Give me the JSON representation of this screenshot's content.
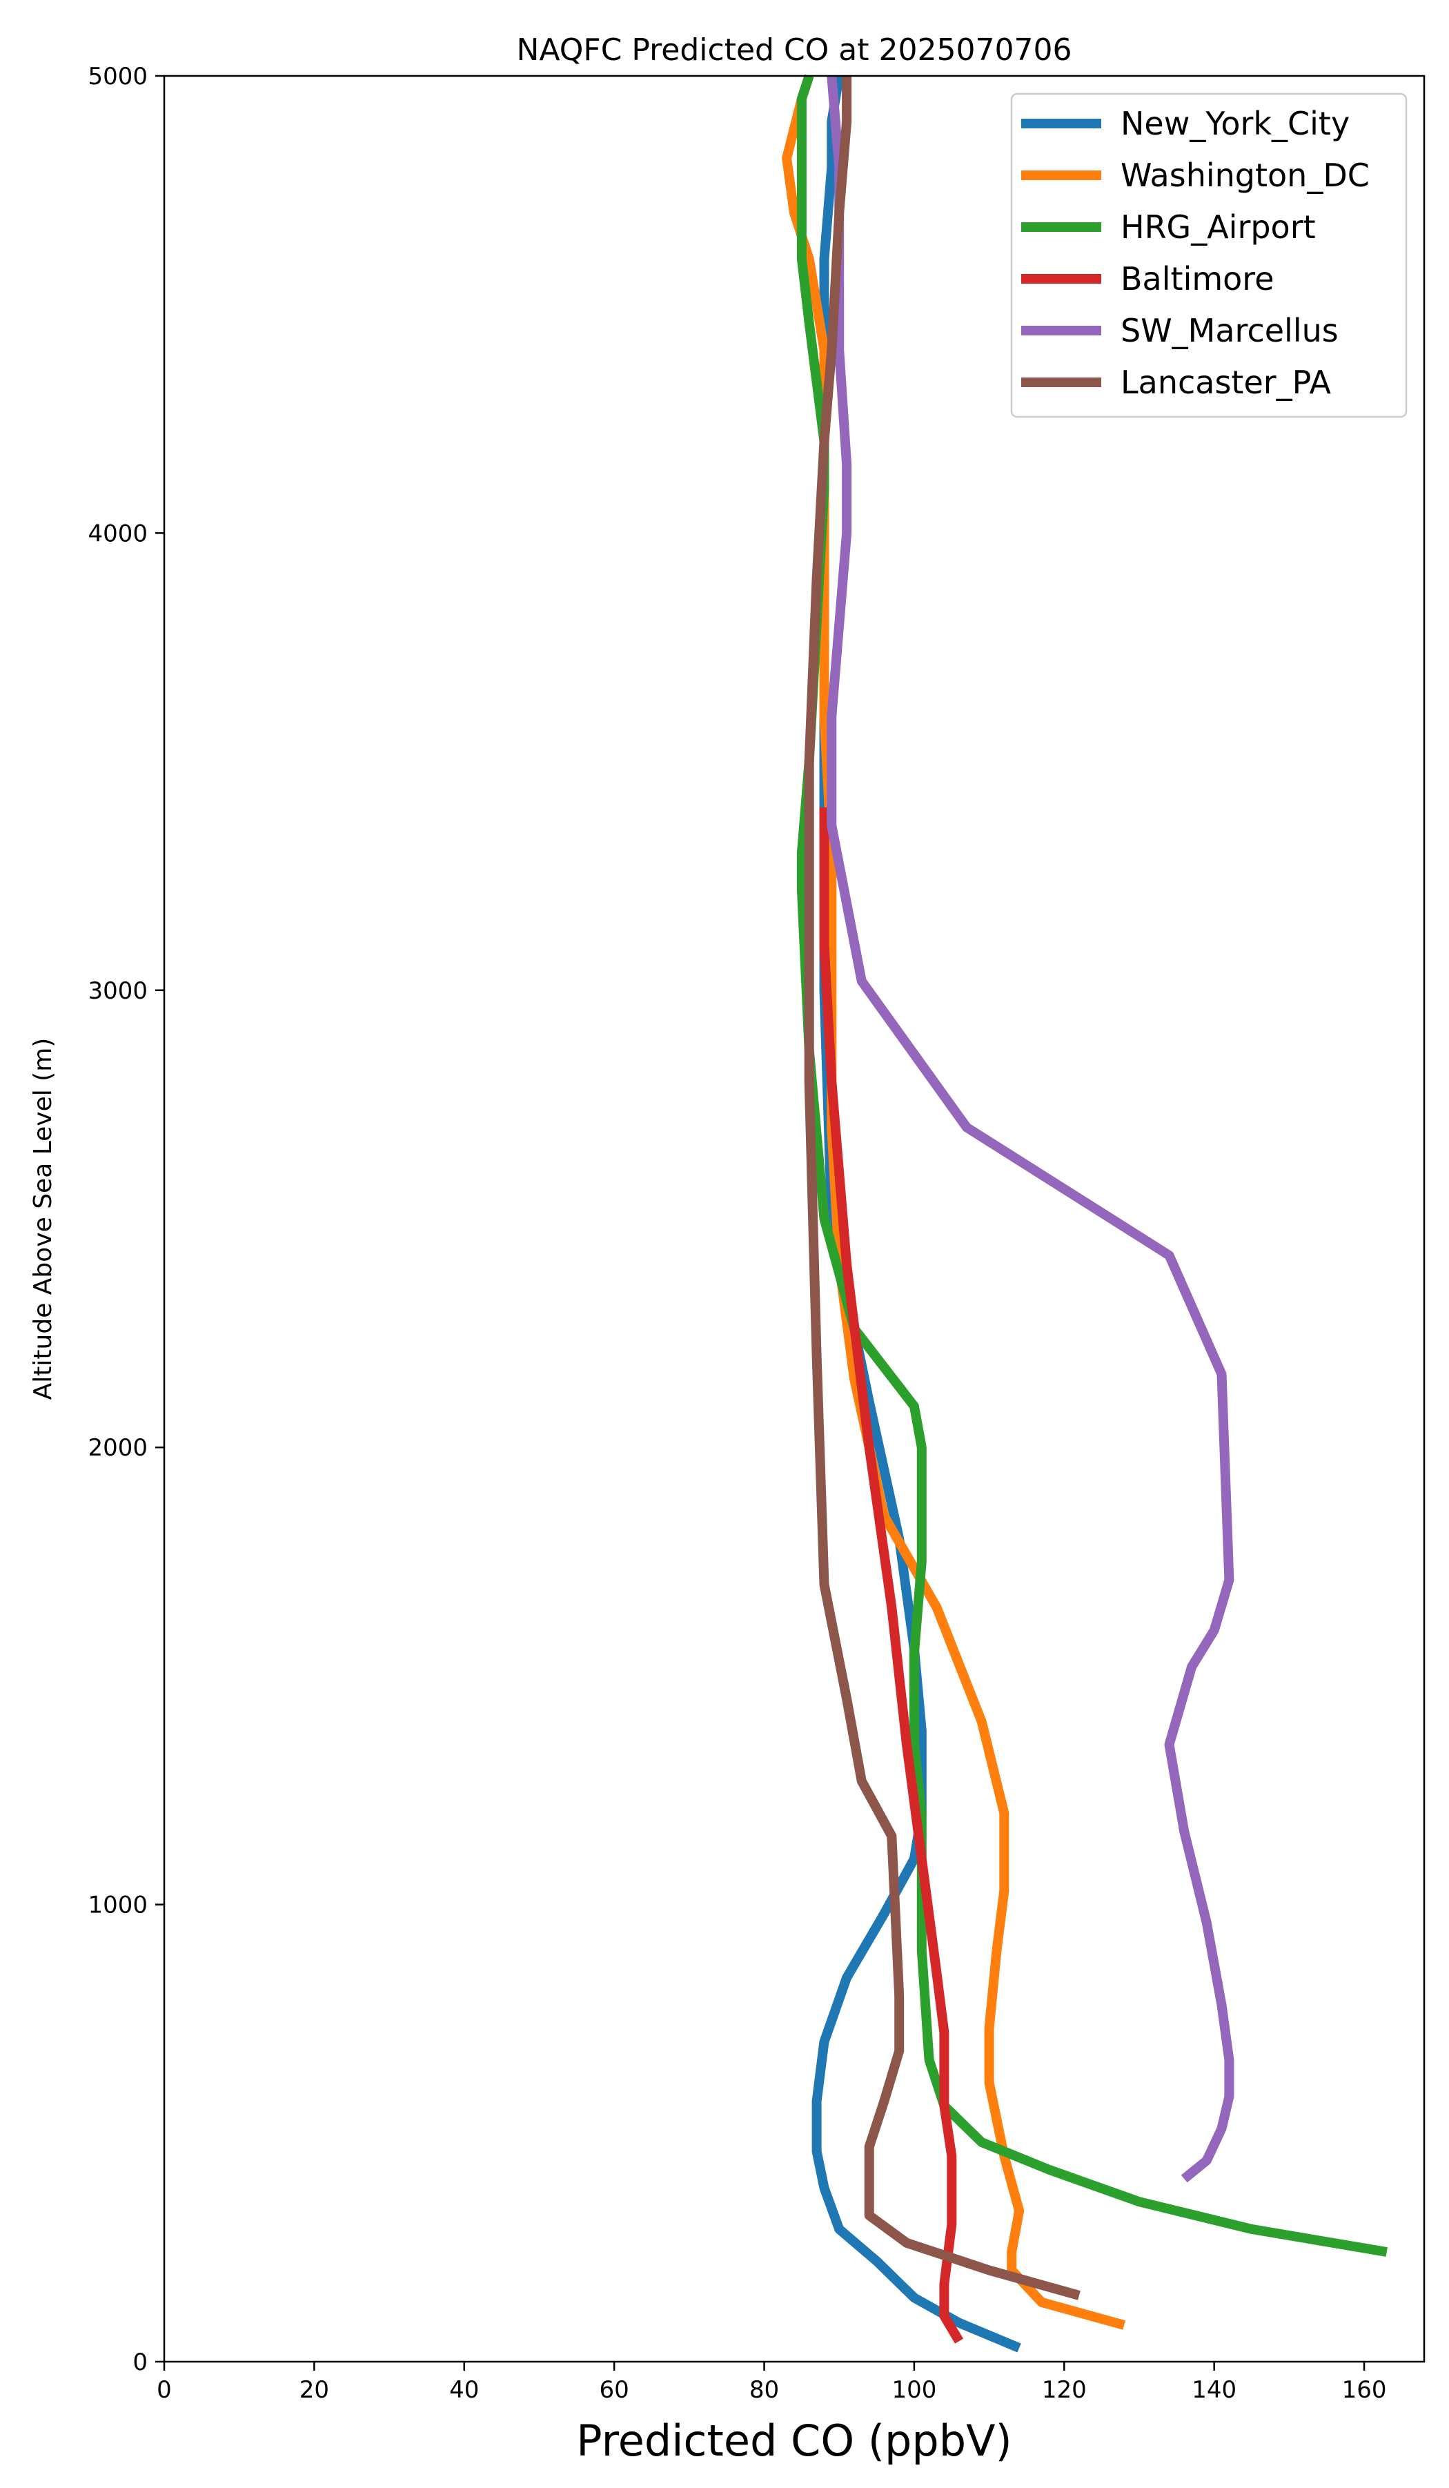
{
  "chart_data": {
    "type": "line",
    "title": "NAQFC Predicted CO at 2025070706",
    "xlabel": "Predicted CO (ppbV)",
    "ylabel": "Altitude Above Sea Level (m)",
    "xlim": [
      0,
      168
    ],
    "ylim": [
      0,
      5000
    ],
    "x_ticks": [
      0,
      20,
      40,
      60,
      80,
      100,
      120,
      140,
      160
    ],
    "y_ticks": [
      0,
      1000,
      2000,
      3000,
      4000,
      5000
    ],
    "grid": false,
    "legend_position": "top-right",
    "series": [
      {
        "name": "New_York_City",
        "color": "#1f77b4",
        "x": [
          114,
          106,
          100,
          95,
          90,
          88,
          87,
          87,
          88,
          91,
          96,
          100,
          101,
          101,
          100,
          98,
          94,
          89,
          88,
          88,
          88,
          88,
          88,
          88,
          88,
          89,
          89,
          90
        ],
        "y": [
          30,
          85,
          140,
          220,
          290,
          380,
          460,
          570,
          700,
          840,
          980,
          1100,
          1200,
          1380,
          1560,
          1800,
          2100,
          2500,
          3000,
          3400,
          3700,
          4000,
          4200,
          4400,
          4600,
          4800,
          4900,
          5000
        ]
      },
      {
        "name": "Washington_DC",
        "color": "#ff7f0e",
        "x": [
          128,
          117,
          113,
          113,
          114,
          112,
          110,
          110,
          111,
          112,
          112,
          109,
          103,
          96,
          92,
          90,
          89,
          89,
          89,
          88,
          88,
          88,
          88,
          86,
          84,
          83,
          85,
          86
        ],
        "y": [
          80,
          130,
          200,
          240,
          330,
          450,
          610,
          730,
          900,
          1030,
          1200,
          1400,
          1650,
          1850,
          2150,
          2400,
          2700,
          3000,
          3300,
          3600,
          3900,
          4200,
          4400,
          4600,
          4700,
          4820,
          4950,
          5000
        ]
      },
      {
        "name": "HRG_Airport",
        "color": "#2ca02c",
        "x": [
          163,
          145,
          130,
          118,
          109,
          104,
          102,
          101,
          101,
          100,
          100,
          101,
          101,
          100,
          92,
          88,
          86,
          85,
          85,
          86,
          87,
          88,
          88,
          86,
          85,
          85,
          85,
          86
        ],
        "y": [
          240,
          290,
          350,
          420,
          480,
          560,
          660,
          900,
          1200,
          1350,
          1550,
          1750,
          2000,
          2090,
          2260,
          2500,
          2870,
          3220,
          3300,
          3500,
          3800,
          4100,
          4200,
          4460,
          4600,
          4800,
          4950,
          5000
        ]
      },
      {
        "name": "Baltimore",
        "color": "#d62728",
        "x": [
          106,
          104,
          104,
          105,
          105,
          104,
          104,
          103,
          101,
          99,
          97,
          94,
          91,
          89,
          88,
          88,
          88
        ],
        "y": [
          45,
          100,
          170,
          300,
          450,
          560,
          720,
          850,
          1100,
          1350,
          1650,
          2000,
          2400,
          2800,
          3100,
          3300,
          3400
        ]
      },
      {
        "name": "SW_Marcellus",
        "color": "#9467bd",
        "x": [
          136,
          139,
          141,
          142,
          142,
          141,
          139,
          136,
          134,
          137,
          140,
          142,
          141,
          134,
          107,
          93,
          89,
          89,
          90,
          91,
          91,
          90,
          90,
          90,
          89
        ],
        "y": [
          400,
          440,
          510,
          580,
          660,
          780,
          960,
          1160,
          1350,
          1520,
          1600,
          1710,
          2160,
          2420,
          2700,
          3020,
          3360,
          3600,
          3800,
          4000,
          4150,
          4400,
          4600,
          4800,
          5000
        ]
      },
      {
        "name": "Lancaster_PA",
        "color": "#8c564b",
        "x": [
          122,
          110,
          99,
          94,
          94,
          96,
          98,
          98,
          97,
          93,
          91,
          88,
          87,
          86,
          86,
          86,
          87,
          88,
          89,
          90,
          91,
          91
        ],
        "y": [
          145,
          200,
          260,
          320,
          470,
          570,
          680,
          800,
          1150,
          1270,
          1450,
          1700,
          2200,
          2800,
          3200,
          3500,
          3900,
          4200,
          4400,
          4700,
          4900,
          5000
        ]
      }
    ]
  }
}
